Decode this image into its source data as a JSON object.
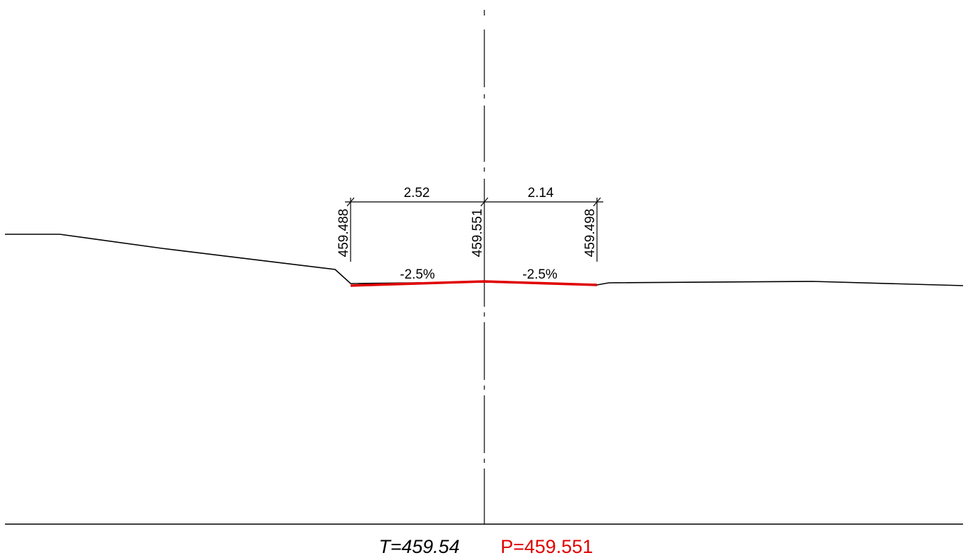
{
  "section": {
    "widths": {
      "left": "2.52",
      "right": "2.14"
    },
    "elevations": {
      "left_edge": "459.488",
      "centerline": "459.551",
      "right_edge": "459.498"
    },
    "cross_slopes": {
      "left": "-2.5%",
      "right": "-2.5%"
    },
    "terrain_elevation": "T=459.54",
    "design_elevation": "P=459.551"
  },
  "colors": {
    "line": "#000000",
    "road_surface": "#e00000",
    "design_label": "#e00000",
    "background": "#ffffff"
  }
}
